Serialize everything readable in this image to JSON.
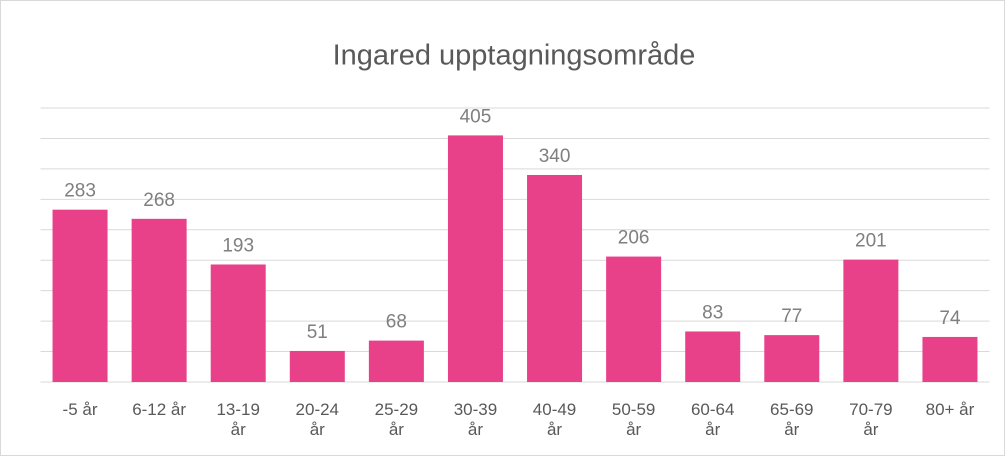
{
  "chart_data": {
    "type": "bar",
    "title": "Ingared upptagningsområde",
    "categories": [
      "-5 år",
      "6-12 år",
      "13-19 år",
      "20-24 år",
      "25-29 år",
      "30-39 år",
      "40-49 år",
      "50-59 år",
      "60-64 år",
      "65-69 år",
      "70-79 år",
      "80+ år"
    ],
    "values": [
      283,
      268,
      193,
      51,
      68,
      405,
      340,
      206,
      83,
      77,
      201,
      74
    ],
    "color": "#e8418a",
    "ylim": [
      0,
      450
    ],
    "yticks": [
      0,
      50,
      100,
      150,
      200,
      250,
      300,
      350,
      400,
      450
    ],
    "grid": true
  }
}
